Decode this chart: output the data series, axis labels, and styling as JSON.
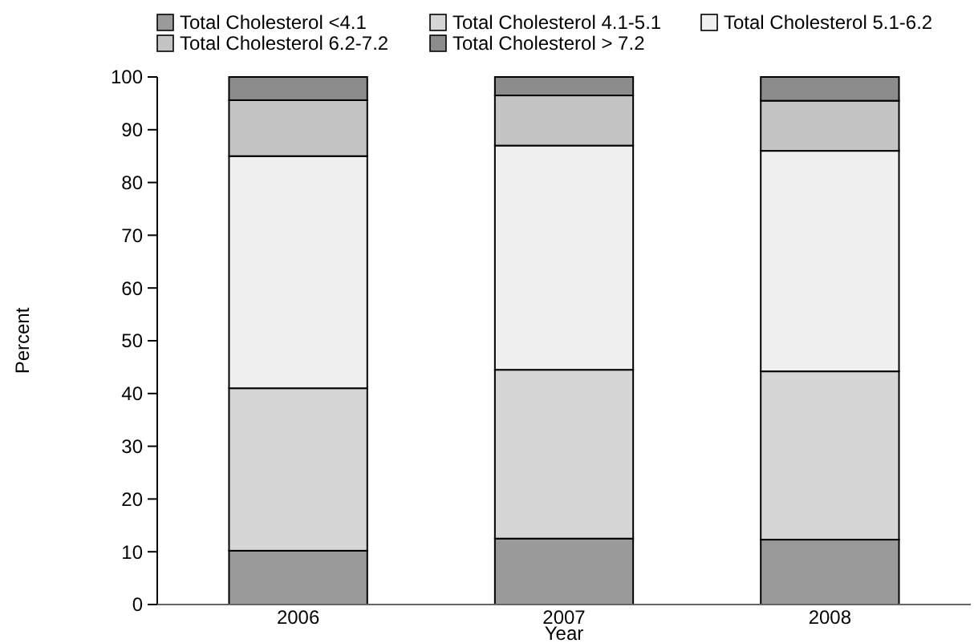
{
  "chart_data": {
    "type": "bar",
    "stacked": true,
    "xlabel": "Year",
    "ylabel": "Percent",
    "categories": [
      "2006",
      "2007",
      "2008"
    ],
    "series": [
      {
        "name": "Total Cholesterol <4.1",
        "color": "#9a9a9a",
        "values": [
          10.2,
          12.5,
          12.3
        ]
      },
      {
        "name": "Total Cholesterol 4.1-5.1",
        "color": "#d6d6d6",
        "values": [
          30.8,
          32,
          31.9
        ]
      },
      {
        "name": "Total Cholesterol 5.1-6.2",
        "color": "#f0f0f0",
        "values": [
          44,
          42.5,
          41.8
        ]
      },
      {
        "name": "Total Cholesterol 6.2-7.2",
        "color": "#c4c4c4",
        "values": [
          10.6,
          9.5,
          9.5
        ]
      },
      {
        "name": "Total Cholesterol > 7.2",
        "color": "#8c8c8c",
        "values": [
          4.4,
          3.5,
          4.5
        ]
      }
    ],
    "ylim": [
      0,
      100
    ],
    "yticks": [
      0,
      10,
      20,
      30,
      40,
      50,
      60,
      70,
      80,
      90,
      100
    ],
    "legend": "top",
    "grid": false
  }
}
